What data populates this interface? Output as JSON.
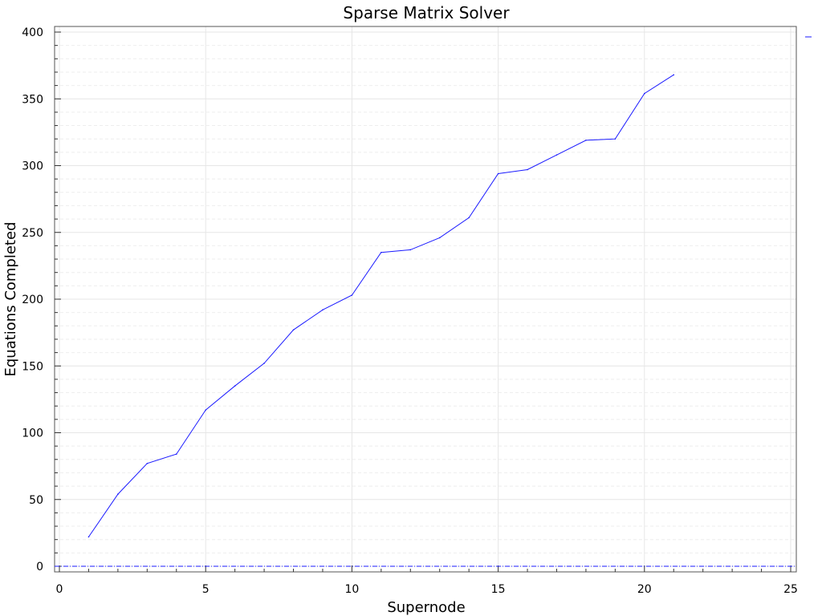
{
  "chart_data": {
    "type": "line",
    "title": "Sparse Matrix Solver",
    "xlabel": "Supernode",
    "ylabel": "Equations Completed",
    "xlim": [
      0,
      25
    ],
    "ylim": [
      0,
      400
    ],
    "xticks": [
      0,
      5,
      10,
      15,
      20,
      25
    ],
    "yticks": [
      0,
      50,
      100,
      150,
      200,
      250,
      300,
      350,
      400
    ],
    "grid": true,
    "legend": "top-right",
    "series": [
      {
        "name": "",
        "color": "#1a1aff",
        "x": [
          1,
          2,
          3,
          4,
          5,
          6,
          7,
          8,
          9,
          10,
          11,
          12,
          13,
          14,
          15,
          16,
          17,
          18,
          19,
          20,
          21
        ],
        "values": [
          22,
          54,
          77,
          84,
          117,
          135,
          152,
          177,
          192,
          203,
          235,
          237,
          246,
          261,
          294,
          297,
          308,
          319,
          320,
          354,
          368
        ]
      }
    ],
    "baseline": {
      "y": 0,
      "color": "#1a1aff",
      "style": "dash-dot"
    }
  }
}
